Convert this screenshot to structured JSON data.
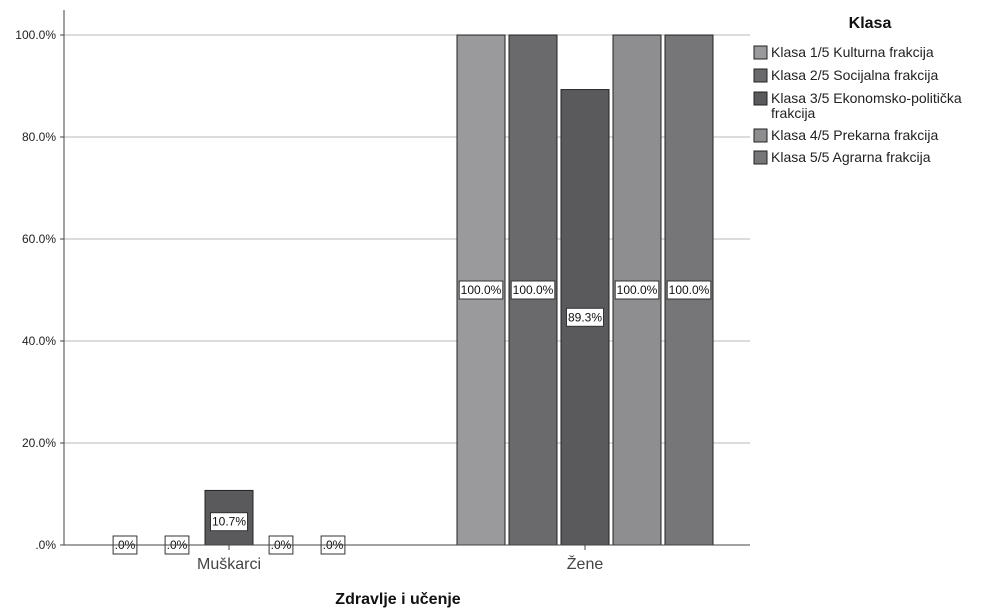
{
  "chart_data": {
    "type": "bar",
    "xlabel": "Zdravlje i učenje",
    "ylabel": "",
    "ylim": [
      0,
      100
    ],
    "yticks": [
      ".0%",
      "20.0%",
      "40.0%",
      "60.0%",
      "80.0%",
      "100.0%"
    ],
    "grid": true,
    "categories": [
      "Muškarci",
      "Žene"
    ],
    "legend": {
      "title": "Klasa",
      "placement": "top-right"
    },
    "series": [
      {
        "name": "Klasa 1/5 Kulturna frakcija",
        "color": "#9a9a9c",
        "values": [
          0,
          100
        ],
        "labels": [
          ".0%",
          "100.0%"
        ]
      },
      {
        "name": "Klasa 2/5 Socijalna frakcija",
        "color": "#6a6a6c",
        "values": [
          0,
          100
        ],
        "labels": [
          ".0%",
          "100.0%"
        ]
      },
      {
        "name": "Klasa 3/5 Ekonomsko-politička frakcija",
        "color": "#5a5a5c",
        "values": [
          10.7,
          89.3
        ],
        "labels": [
          "10.7%",
          "89.3%"
        ]
      },
      {
        "name": "Klasa 4/5 Prekarna frakcija",
        "color": "#8e8e90",
        "values": [
          0,
          100
        ],
        "labels": [
          ".0%",
          "100.0%"
        ]
      },
      {
        "name": "Klasa 5/5 Agrarna frakcija",
        "color": "#767678",
        "values": [
          0,
          100
        ],
        "labels": [
          ".0%",
          "100.0%"
        ]
      }
    ]
  }
}
